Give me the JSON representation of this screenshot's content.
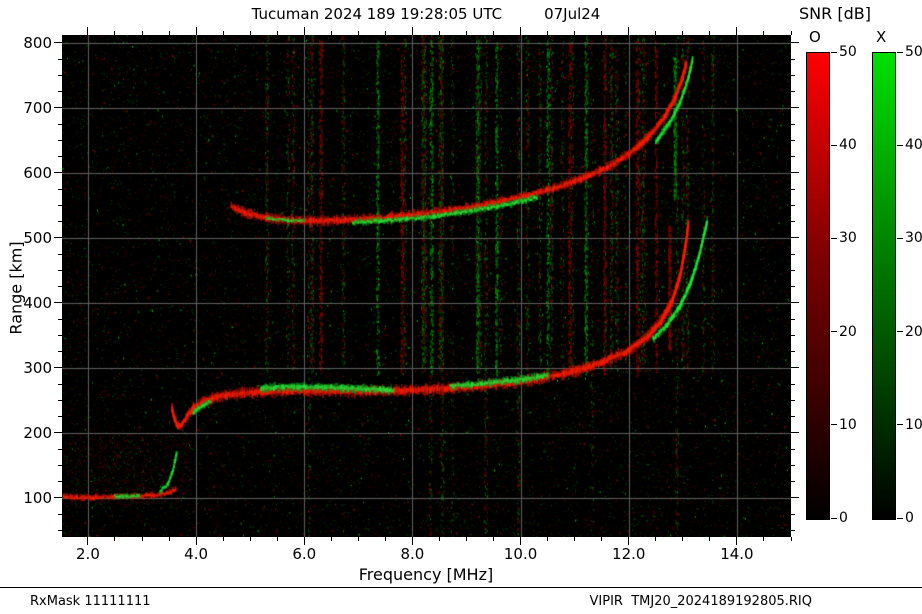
{
  "header": {
    "title": "Tucuman 2024 189 19:28:05 UTC",
    "date": "07Jul24"
  },
  "footer": {
    "rx_mask": "RxMask 11111111",
    "file": "VIPIR  TMJ20_2024189192805.RIQ"
  },
  "axes": {
    "x_label": "Frequency [MHz]",
    "y_label": "Range [km]",
    "x_ticks": [
      {
        "v": 2,
        "label": "2.0"
      },
      {
        "v": 4,
        "label": "4.0"
      },
      {
        "v": 6,
        "label": "6.0"
      },
      {
        "v": 8,
        "label": "8.0"
      },
      {
        "v": 10,
        "label": "10.0"
      },
      {
        "v": 12,
        "label": "12.0"
      },
      {
        "v": 14,
        "label": "14.0"
      }
    ],
    "y_ticks": [
      {
        "v": 100,
        "label": "100"
      },
      {
        "v": 200,
        "label": "200"
      },
      {
        "v": 300,
        "label": "300"
      },
      {
        "v": 400,
        "label": "400"
      },
      {
        "v": 500,
        "label": "500"
      },
      {
        "v": 600,
        "label": "600"
      },
      {
        "v": 700,
        "label": "700"
      },
      {
        "v": 800,
        "label": "800"
      }
    ]
  },
  "colorbars": {
    "title": "SNR [dB]",
    "min": 0,
    "max": 50,
    "ticks": [
      50,
      40,
      30,
      20,
      10,
      0
    ],
    "bars": [
      {
        "label": "O",
        "mid": "#7a0000",
        "top": "#ff0000"
      },
      {
        "label": "X",
        "mid": "#007a00",
        "top": "#00e000"
      }
    ]
  },
  "chart_data": {
    "type": "heatmap",
    "title": "Tucuman 2024 189 19:28:05 UTC 07Jul24",
    "xlabel": "Frequency [MHz]",
    "ylabel": "Range [km]",
    "xlim": [
      1.52,
      15.0
    ],
    "ylim": [
      40,
      812
    ],
    "x_major_ticks": [
      2,
      4,
      6,
      8,
      10,
      12,
      14
    ],
    "y_major_ticks": [
      100,
      200,
      300,
      400,
      500,
      600,
      700,
      800
    ],
    "background": "#000000",
    "grid_color": "#5f5f5f",
    "legend": {
      "O": "red O-mode SNR 0-50 dB",
      "X": "green X-mode SNR 0-50 dB"
    },
    "palette": {
      "O": {
        "base": "#c81200",
        "core": "#ff1e00"
      },
      "X": {
        "base": "#00aa1e",
        "core": "#2ae63c"
      }
    },
    "series": [
      {
        "name": "e-trace-o",
        "mode": "O",
        "width": 5,
        "points": [
          [
            1.55,
            103
          ],
          [
            1.8,
            101
          ],
          [
            2.1,
            101
          ],
          [
            2.5,
            102
          ],
          [
            2.9,
            103
          ],
          [
            3.2,
            104
          ],
          [
            3.45,
            107
          ],
          [
            3.62,
            113
          ]
        ]
      },
      {
        "name": "e-trace-x1",
        "mode": "X",
        "width": 4,
        "points": [
          [
            2.5,
            103
          ],
          [
            2.72,
            102
          ],
          [
            2.95,
            104
          ]
        ]
      },
      {
        "name": "e-trace-x2",
        "mode": "X",
        "width": 4,
        "points": [
          [
            3.33,
            110
          ],
          [
            3.48,
            122
          ],
          [
            3.58,
            145
          ],
          [
            3.64,
            170
          ]
        ]
      },
      {
        "name": "f-start-o",
        "mode": "O",
        "width": 7,
        "points": [
          [
            3.55,
            238
          ],
          [
            3.6,
            222
          ],
          [
            3.66,
            210
          ],
          [
            3.74,
            212
          ],
          [
            3.82,
            224
          ]
        ]
      },
      {
        "name": "f-hop1-o",
        "mode": "O",
        "width": 9,
        "points": [
          [
            3.82,
            226
          ],
          [
            3.95,
            238
          ],
          [
            4.1,
            246
          ],
          [
            4.3,
            253
          ],
          [
            4.55,
            258
          ],
          [
            4.85,
            261
          ],
          [
            5.2,
            263
          ],
          [
            5.7,
            265
          ],
          [
            6.3,
            265
          ],
          [
            7.0,
            264
          ],
          [
            7.8,
            265
          ],
          [
            8.6,
            268
          ],
          [
            9.2,
            272
          ],
          [
            9.8,
            277
          ],
          [
            10.3,
            283
          ],
          [
            10.8,
            291
          ],
          [
            11.2,
            300
          ],
          [
            11.6,
            312
          ],
          [
            12.0,
            327
          ],
          [
            12.35,
            348
          ],
          [
            12.6,
            372
          ],
          [
            12.8,
            402
          ],
          [
            12.95,
            442
          ],
          [
            13.05,
            488
          ],
          [
            13.1,
            522
          ]
        ]
      },
      {
        "name": "f-hop1-x-left",
        "mode": "X",
        "width": 5,
        "points": [
          [
            3.95,
            231
          ],
          [
            4.1,
            241
          ],
          [
            4.27,
            249
          ]
        ]
      },
      {
        "name": "f-hop1-x-band",
        "mode": "X",
        "width": 7,
        "points": [
          [
            5.2,
            269
          ],
          [
            5.6,
            271
          ],
          [
            6.0,
            271
          ],
          [
            6.5,
            270
          ],
          [
            7.0,
            268
          ],
          [
            7.4,
            267
          ],
          [
            7.65,
            266
          ]
        ]
      },
      {
        "name": "f-hop1-x-mid",
        "mode": "X",
        "width": 6,
        "points": [
          [
            8.7,
            272
          ],
          [
            9.1,
            275
          ],
          [
            9.5,
            278
          ],
          [
            9.9,
            281
          ],
          [
            10.3,
            286
          ],
          [
            10.5,
            289
          ]
        ]
      },
      {
        "name": "f-hop1-x-cusp",
        "mode": "X",
        "width": 7,
        "points": [
          [
            12.45,
            345
          ],
          [
            12.7,
            365
          ],
          [
            12.95,
            395
          ],
          [
            13.15,
            432
          ],
          [
            13.3,
            472
          ],
          [
            13.4,
            508
          ],
          [
            13.45,
            525
          ]
        ]
      },
      {
        "name": "f-hop2-o",
        "mode": "O",
        "width": 8,
        "points": [
          [
            4.65,
            549
          ],
          [
            4.9,
            539
          ],
          [
            5.2,
            532
          ],
          [
            5.6,
            528
          ],
          [
            6.1,
            526
          ],
          [
            6.6,
            527
          ],
          [
            7.1,
            529
          ],
          [
            7.6,
            532
          ],
          [
            8.1,
            536
          ],
          [
            8.6,
            541
          ],
          [
            9.1,
            547
          ],
          [
            9.6,
            555
          ],
          [
            10.1,
            564
          ],
          [
            10.6,
            576
          ],
          [
            11.1,
            590
          ],
          [
            11.6,
            608
          ],
          [
            12.0,
            629
          ],
          [
            12.35,
            654
          ],
          [
            12.65,
            684
          ],
          [
            12.85,
            714
          ],
          [
            13.0,
            748
          ],
          [
            13.06,
            768
          ]
        ]
      },
      {
        "name": "f-hop2-x-left",
        "mode": "X",
        "width": 3,
        "points": [
          [
            5.3,
            530
          ],
          [
            5.7,
            527
          ],
          [
            6.0,
            526
          ]
        ]
      },
      {
        "name": "f-hop2-x-band",
        "mode": "X",
        "width": 5,
        "points": [
          [
            6.9,
            524
          ],
          [
            7.4,
            526
          ],
          [
            7.9,
            529
          ],
          [
            8.4,
            533
          ],
          [
            8.9,
            539
          ],
          [
            9.4,
            546
          ],
          [
            9.9,
            554
          ],
          [
            10.3,
            562
          ]
        ]
      },
      {
        "name": "f-hop2-x-cusp",
        "mode": "X",
        "width": 6,
        "points": [
          [
            12.5,
            648
          ],
          [
            12.75,
            676
          ],
          [
            12.95,
            708
          ],
          [
            13.1,
            745
          ],
          [
            13.18,
            775
          ]
        ]
      }
    ],
    "rfi_columns": [
      {
        "f": 6.3,
        "mode": "O"
      },
      {
        "f": 7.35,
        "mode": "X"
      },
      {
        "f": 7.8,
        "mode": "O"
      },
      {
        "f": 8.35,
        "mode": "X"
      },
      {
        "f": 9.2,
        "mode": "X"
      },
      {
        "f": 9.55,
        "mode": "X"
      },
      {
        "f": 10.5,
        "mode": "X"
      },
      {
        "f": 10.9,
        "mode": "O"
      },
      {
        "f": 11.2,
        "mode": "X"
      },
      {
        "f": 11.55,
        "mode": "O"
      },
      {
        "f": 12.15,
        "mode": "O"
      },
      {
        "f": 12.5,
        "mode": "O"
      },
      {
        "f": 12.75,
        "mode": "O",
        "kmin": 330,
        "kmax": 520
      },
      {
        "f": 12.85,
        "mode": "X",
        "kmin": 560,
        "kmax": 780
      }
    ]
  }
}
